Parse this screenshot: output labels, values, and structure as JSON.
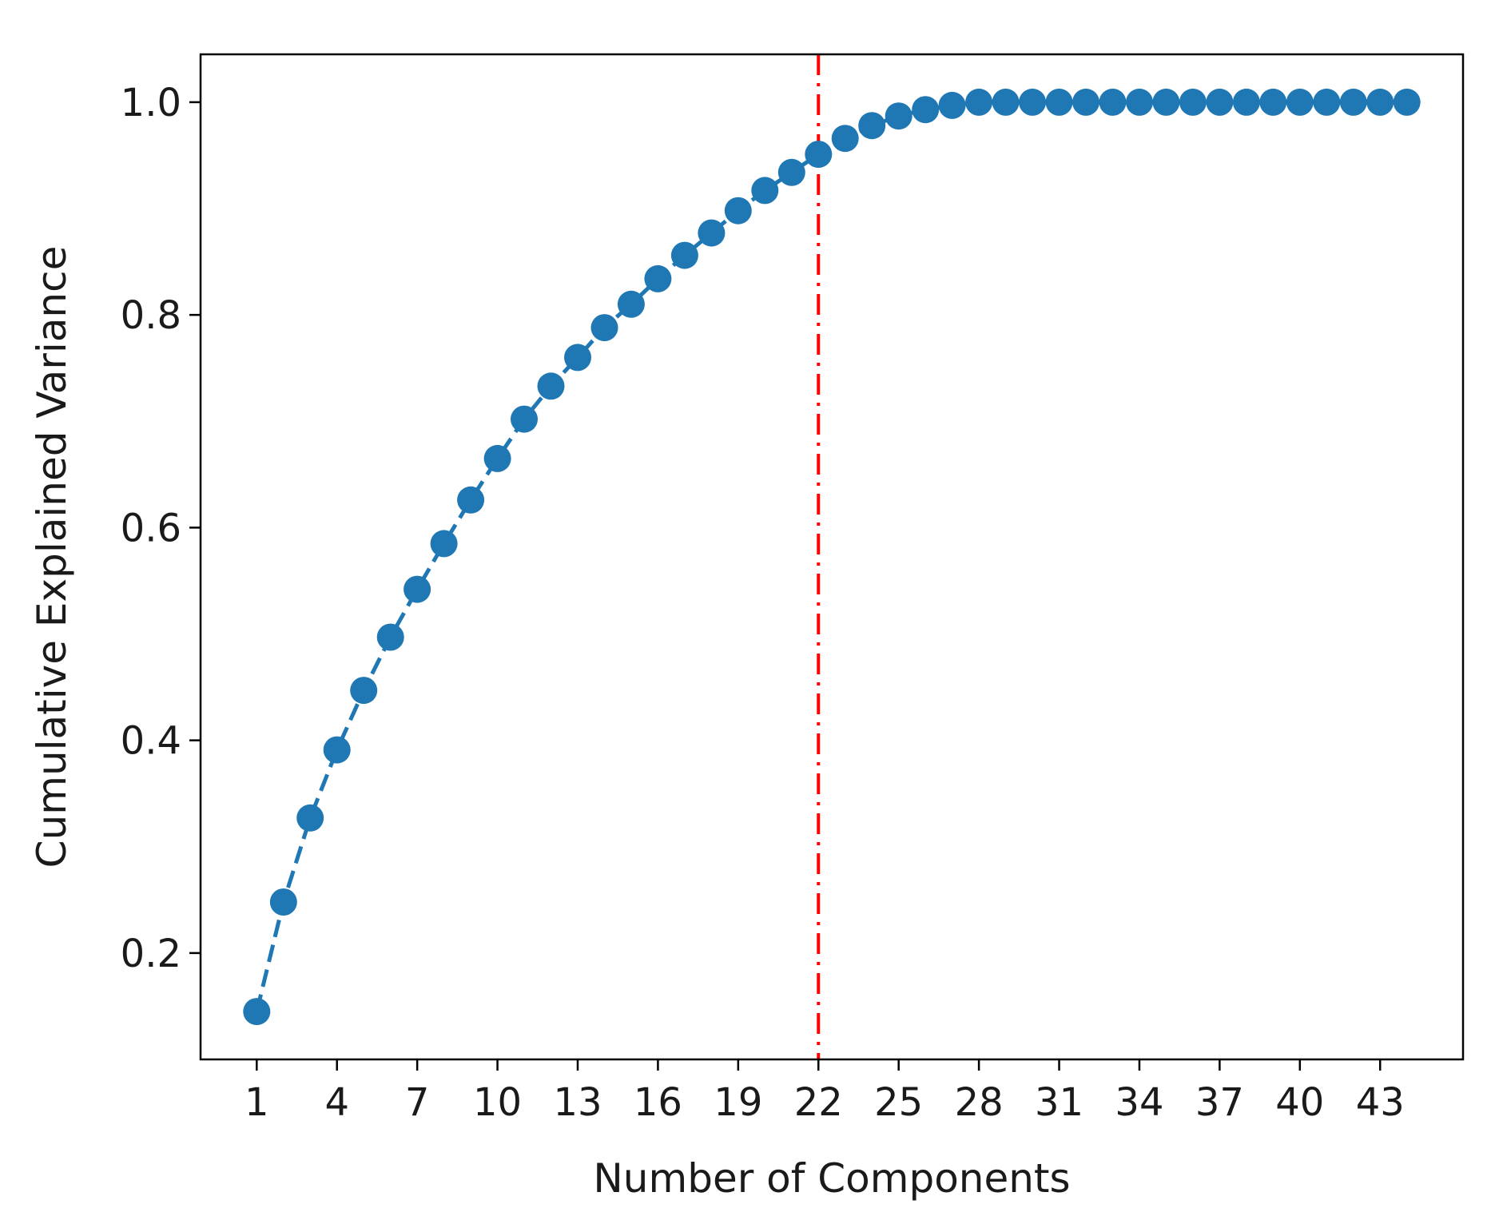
{
  "chart_data": {
    "type": "line",
    "title": "",
    "xlabel": "Number of Components",
    "ylabel": "Cumulative Explained Variance",
    "x_ticks": [
      1,
      4,
      7,
      10,
      13,
      16,
      19,
      22,
      25,
      28,
      31,
      34,
      37,
      40,
      43
    ],
    "y_ticks": [
      "0.2",
      "0.4",
      "0.6",
      "0.8",
      "1.0"
    ],
    "xlim": [
      -1.1,
      46.1
    ],
    "ylim": [
      0.1,
      1.045
    ],
    "grid": false,
    "legend": "none",
    "series": [
      {
        "color": "#1f77b4",
        "line_style": "dashed",
        "marker": "circle",
        "x": [
          1,
          2,
          3,
          4,
          5,
          6,
          7,
          8,
          9,
          10,
          11,
          12,
          13,
          14,
          15,
          16,
          17,
          18,
          19,
          20,
          21,
          22,
          23,
          24,
          25,
          26,
          27,
          28,
          29,
          30,
          31,
          32,
          33,
          34,
          35,
          36,
          37,
          38,
          39,
          40,
          41,
          42,
          43,
          44
        ],
        "y": [
          0.145,
          0.248,
          0.327,
          0.391,
          0.447,
          0.497,
          0.542,
          0.585,
          0.626,
          0.665,
          0.702,
          0.733,
          0.76,
          0.788,
          0.81,
          0.834,
          0.856,
          0.877,
          0.898,
          0.917,
          0.934,
          0.951,
          0.966,
          0.978,
          0.987,
          0.993,
          0.997,
          1.0,
          1.0,
          1.0,
          1.0,
          1.0,
          1.0,
          1.0,
          1.0,
          1.0,
          1.0,
          1.0,
          1.0,
          1.0,
          1.0,
          1.0,
          1.0,
          1.0
        ]
      }
    ],
    "reference_lines": [
      {
        "orientation": "vertical",
        "x": 22,
        "color": "#ff0000",
        "line_style": "dashdot"
      }
    ]
  }
}
